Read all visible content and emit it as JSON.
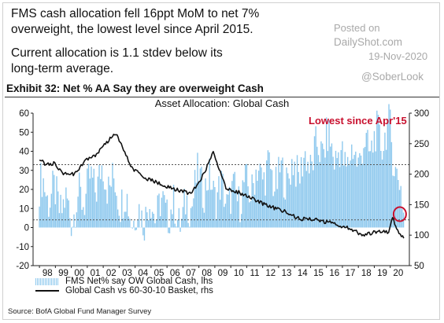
{
  "headline": "FMS cash allocation fell 16ppt MoM to net 7% overweight, the lowest level since April 2015.",
  "subheadline": "Current allocation is 1.1 stdev below its long-term average.",
  "watermark": {
    "posted": "Posted on",
    "site": "DailyShot.com",
    "date": "19-Nov-2020",
    "handle": "@SoberLook"
  },
  "exhibit_title": "Exhibit 32: Net % AA Say they are overweight Cash",
  "source": "Source: BofA Global Fund Manager Survey",
  "colors": {
    "bars": "#8fc9ee",
    "line": "#111111",
    "annotation": "#c8102e",
    "ref_line": "#555555"
  },
  "chart_data": {
    "type": "bar+line",
    "title": "Asset Allocation: Global Cash",
    "annotation": "Lowest since Apr'15",
    "x_ticks": [
      "98",
      "99",
      "00",
      "01",
      "02",
      "03",
      "04",
      "05",
      "06",
      "07",
      "08",
      "09",
      "10",
      "11",
      "12",
      "13",
      "14",
      "15",
      "16",
      "17",
      "18",
      "19",
      "20"
    ],
    "y_left": {
      "range": [
        -20,
        60
      ],
      "ticks": [
        -20,
        -10,
        0,
        10,
        20,
        30,
        40,
        50,
        60
      ]
    },
    "y_right": {
      "range": [
        50,
        300
      ],
      "ticks": [
        50,
        100,
        150,
        200,
        250,
        300
      ]
    },
    "reference_lines_lhs": [
      33,
      4
    ],
    "legend": [
      {
        "name": "FMS Net% say OW Global Cash, lhs",
        "kind": "bar"
      },
      {
        "name": "Global Cash vs 60-30-10 Basket, rhs",
        "kind": "line"
      }
    ],
    "series": [
      {
        "name": "FMS Net% say OW Global Cash, lhs",
        "axis": "left",
        "kind": "bar",
        "values_yearly": [
          {
            "year": 1998,
            "value": 22
          },
          {
            "year": 1999,
            "value": 15
          },
          {
            "year": 2000,
            "value": 8
          },
          {
            "year": 2001,
            "value": 20
          },
          {
            "year": 2002,
            "value": 28
          },
          {
            "year": 2003,
            "value": 18
          },
          {
            "year": 2004,
            "value": 5
          },
          {
            "year": 2005,
            "value": 10
          },
          {
            "year": 2006,
            "value": 10
          },
          {
            "year": 2007,
            "value": 5
          },
          {
            "year": 2008,
            "value": 25
          },
          {
            "year": 2009,
            "value": 20
          },
          {
            "year": 2010,
            "value": 15
          },
          {
            "year": 2011,
            "value": 20
          },
          {
            "year": 2012,
            "value": 30
          },
          {
            "year": 2013,
            "value": 25
          },
          {
            "year": 2014,
            "value": 30
          },
          {
            "year": 2015,
            "value": 35
          },
          {
            "year": 2016,
            "value": 45
          },
          {
            "year": 2017,
            "value": 35
          },
          {
            "year": 2018,
            "value": 38
          },
          {
            "year": 2019,
            "value": 45
          },
          {
            "year": 2020,
            "value": 50
          },
          {
            "year": 2020.85,
            "value": 7
          }
        ]
      },
      {
        "name": "Global Cash vs 60-30-10 Basket, rhs",
        "axis": "right",
        "kind": "line",
        "points": [
          {
            "x": 1998.0,
            "y": 225
          },
          {
            "x": 1998.4,
            "y": 215
          },
          {
            "x": 1998.9,
            "y": 218
          },
          {
            "x": 1999.5,
            "y": 200
          },
          {
            "x": 2000.2,
            "y": 200
          },
          {
            "x": 2000.9,
            "y": 222
          },
          {
            "x": 2001.5,
            "y": 230
          },
          {
            "x": 2002.0,
            "y": 245
          },
          {
            "x": 2002.5,
            "y": 260
          },
          {
            "x": 2002.8,
            "y": 265
          },
          {
            "x": 2003.2,
            "y": 245
          },
          {
            "x": 2003.8,
            "y": 210
          },
          {
            "x": 2004.5,
            "y": 195
          },
          {
            "x": 2005.5,
            "y": 185
          },
          {
            "x": 2006.5,
            "y": 175
          },
          {
            "x": 2007.5,
            "y": 168
          },
          {
            "x": 2008.3,
            "y": 200
          },
          {
            "x": 2008.9,
            "y": 235
          },
          {
            "x": 2009.2,
            "y": 215
          },
          {
            "x": 2009.7,
            "y": 178
          },
          {
            "x": 2010.5,
            "y": 170
          },
          {
            "x": 2011.5,
            "y": 158
          },
          {
            "x": 2012.3,
            "y": 148
          },
          {
            "x": 2013.3,
            "y": 140
          },
          {
            "x": 2014.3,
            "y": 127
          },
          {
            "x": 2015.3,
            "y": 125
          },
          {
            "x": 2016.3,
            "y": 120
          },
          {
            "x": 2017.3,
            "y": 112
          },
          {
            "x": 2018.3,
            "y": 100
          },
          {
            "x": 2018.9,
            "y": 104
          },
          {
            "x": 2019.6,
            "y": 108
          },
          {
            "x": 2019.9,
            "y": 104
          },
          {
            "x": 2020.15,
            "y": 130
          },
          {
            "x": 2020.4,
            "y": 110
          },
          {
            "x": 2020.85,
            "y": 95
          }
        ]
      }
    ]
  }
}
